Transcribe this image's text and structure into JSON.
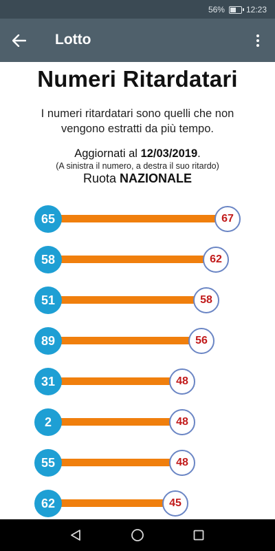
{
  "status_bar": {
    "battery": "56%",
    "time": "12:23"
  },
  "app_bar": {
    "title": "Lotto"
  },
  "page": {
    "title": "Numeri Ritardatari",
    "intro": "I numeri ritardatari sono quelli che non vengono estratti da più tempo.",
    "updated_prefix": "Aggiornati al ",
    "updated_date": "12/03/2019",
    "updated_suffix": ".",
    "note": "(A sinistra il numero, a destra il suo ritardo)",
    "wheel_prefix": "Ruota ",
    "wheel_name": "NAZIONALE"
  },
  "rows": [
    {
      "number": "65",
      "delay": "67"
    },
    {
      "number": "58",
      "delay": "62"
    },
    {
      "number": "51",
      "delay": "58"
    },
    {
      "number": "89",
      "delay": "56"
    },
    {
      "number": "31",
      "delay": "48"
    },
    {
      "number": "2",
      "delay": "48"
    },
    {
      "number": "55",
      "delay": "48"
    },
    {
      "number": "62",
      "delay": "45"
    }
  ],
  "colors": {
    "status_bar": "#3b4a54",
    "app_bar": "#4f606b",
    "number_circle": "#1e9fd4",
    "bar": "#f07f0d",
    "delay_text": "#c11a1a",
    "delay_border": "#6a85c4"
  }
}
